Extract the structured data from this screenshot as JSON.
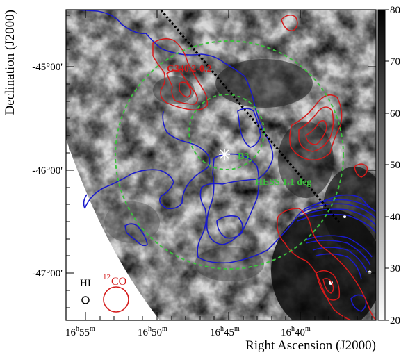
{
  "figure": {
    "ylabel": "Declination (J2000)",
    "xlabel": "Right Ascension (J2000)",
    "x_ticks": [
      {
        "h": "16",
        "hs": "h",
        "m": "55",
        "ms": "m"
      },
      {
        "h": "16",
        "hs": "h",
        "m": "50",
        "ms": "m"
      },
      {
        "h": "16",
        "hs": "h",
        "m": "45",
        "ms": "m"
      },
      {
        "h": "16",
        "hs": "h",
        "m": "40",
        "ms": "m"
      }
    ],
    "y_ticks": [
      "-45°00'",
      "-46°00'",
      "-47°00'"
    ],
    "colorbar": {
      "ticks": [
        "80",
        "70",
        "60",
        "50",
        "40",
        "30",
        "20"
      ],
      "range": [
        20,
        80
      ],
      "colormap": "grayscale inverted (white=low, black=high)"
    },
    "annotations": {
      "g340": "G340.2-0.2",
      "b3": "B3",
      "hess": "HESS 1.1 deg"
    },
    "beam_legend": {
      "hi": "HI",
      "co_sup": "12",
      "co": "CO"
    },
    "colors": {
      "blue_contour": "#1a1acc",
      "red_contour": "#d41a1a",
      "green_circle": "#3cbf3c",
      "dashed_line": "#000000"
    }
  }
}
